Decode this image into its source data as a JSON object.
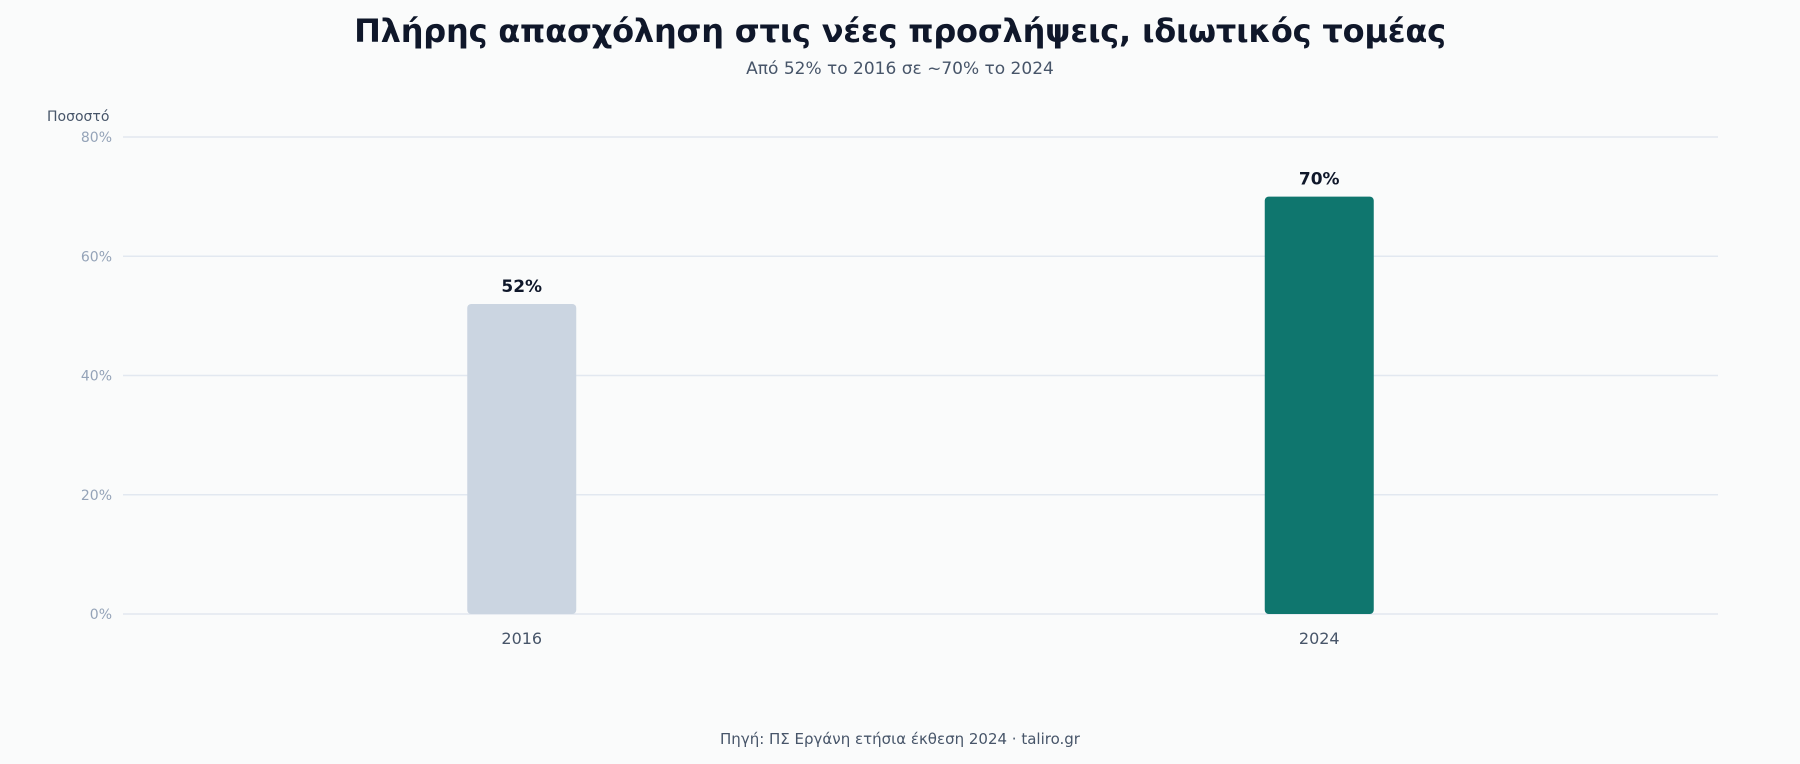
{
  "chart_data": {
    "type": "bar",
    "title": "Πλήρης απασχόληση στις νέες προσλήψεις, ιδιωτικός τομέας",
    "subtitle": "Από 52% το 2016 σε ~70% το 2024",
    "ylabel": "Ποσοστό",
    "xlabel": "",
    "categories": [
      "2016",
      "2024"
    ],
    "values": [
      52,
      70
    ],
    "data_labels": [
      "52%",
      "70%"
    ],
    "bar_colors": [
      "#cbd5e1",
      "#0f766e"
    ],
    "ylim": [
      0,
      80
    ],
    "yticks": [
      0,
      20,
      40,
      60,
      80
    ],
    "ytick_labels": [
      "0%",
      "20%",
      "40%",
      "60%",
      "80%"
    ],
    "grid": true,
    "legend": "none",
    "source": "Πηγή: ΠΣ Εργάνη ετήσια έκθεση 2024 · taliro.gr"
  }
}
